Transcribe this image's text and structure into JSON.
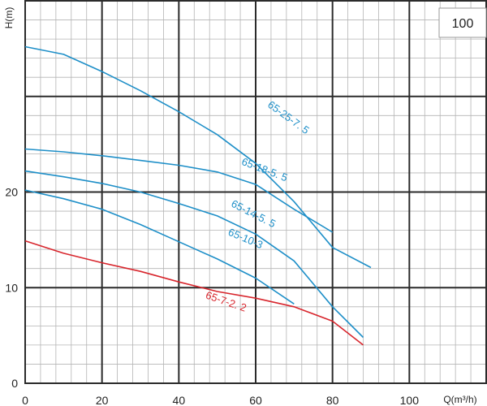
{
  "chart_data": {
    "type": "line",
    "badge": "100",
    "xlabel": "Q(m³/h)",
    "ylabel": "H(m)",
    "xlim": [
      0,
      120
    ],
    "ylim": [
      0,
      40
    ],
    "x_ticks": [
      0,
      20,
      40,
      60,
      80,
      100
    ],
    "y_ticks": [
      0,
      10,
      20
    ],
    "grid": true,
    "colors": {
      "blue": "#1e8fc8",
      "red": "#d8262d",
      "grid_major": "#2b2b2b",
      "grid_minor": "#b4b4b4"
    },
    "series": [
      {
        "name": "65-25-7. 5",
        "color": "#1e8fc8",
        "points": [
          [
            0,
            35.2
          ],
          [
            10,
            34.4
          ],
          [
            20,
            32.6
          ],
          [
            30,
            30.6
          ],
          [
            40,
            28.4
          ],
          [
            50,
            26.0
          ],
          [
            60,
            23.0
          ],
          [
            70,
            19.0
          ],
          [
            80,
            14.2
          ],
          [
            90,
            12.1
          ]
        ],
        "label_at": [
          68,
          27.5
        ],
        "label_rotation": 36
      },
      {
        "name": "65-18-5. 5",
        "color": "#1e8fc8",
        "points": [
          [
            0,
            24.5
          ],
          [
            10,
            24.2
          ],
          [
            20,
            23.8
          ],
          [
            30,
            23.3
          ],
          [
            40,
            22.8
          ],
          [
            50,
            22.1
          ],
          [
            60,
            20.8
          ],
          [
            70,
            18.2
          ],
          [
            80,
            15.8
          ]
        ],
        "label_at": [
          62,
          22.0
        ],
        "label_rotation": 21
      },
      {
        "name": "65-14-5. 5",
        "color": "#1e8fc8",
        "points": [
          [
            0,
            22.2
          ],
          [
            10,
            21.6
          ],
          [
            20,
            20.9
          ],
          [
            30,
            20.0
          ],
          [
            40,
            18.8
          ],
          [
            50,
            17.5
          ],
          [
            60,
            15.6
          ],
          [
            70,
            12.8
          ],
          [
            80,
            8.0
          ],
          [
            88,
            4.8
          ]
        ],
        "label_at": [
          59,
          17.4
        ],
        "label_rotation": 27
      },
      {
        "name": "65-10-3",
        "color": "#1e8fc8",
        "points": [
          [
            0,
            20.2
          ],
          [
            10,
            19.3
          ],
          [
            20,
            18.2
          ],
          [
            30,
            16.6
          ],
          [
            40,
            14.8
          ],
          [
            50,
            13.0
          ],
          [
            60,
            11.0
          ],
          [
            70,
            8.3
          ]
        ],
        "label_at": [
          57,
          14.8
        ],
        "label_rotation": 23
      },
      {
        "name": "65-7-2. 2",
        "color": "#d8262d",
        "points": [
          [
            0,
            14.9
          ],
          [
            10,
            13.6
          ],
          [
            20,
            12.6
          ],
          [
            30,
            11.7
          ],
          [
            40,
            10.6
          ],
          [
            50,
            9.6
          ],
          [
            60,
            8.9
          ],
          [
            70,
            8.0
          ],
          [
            80,
            6.5
          ],
          [
            88,
            4.0
          ]
        ],
        "label_at": [
          52,
          8.2
        ],
        "label_rotation": 19
      }
    ]
  }
}
